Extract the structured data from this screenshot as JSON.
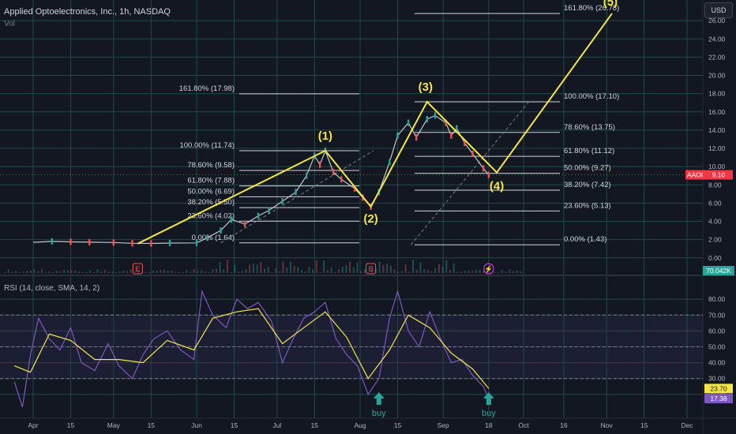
{
  "header": {
    "title": "Applied Optoelectronics, Inc., 1h, NASDAQ",
    "volume_label": "Vol"
  },
  "controls": {
    "currency_button": "USD"
  },
  "rsi_panel": {
    "title": "RSI (14, close, SMA, 14, 2)"
  },
  "colors": {
    "background": "#131722",
    "grid": "#1f4a43",
    "wave_line": "#f5e642",
    "fib_line": "#d1d4dc",
    "price_up": "#26a69a",
    "price_down": "#ef5350",
    "rsi_line": "#7e57c2",
    "rsi_ma": "#f5e642",
    "price_tag": "#f23645"
  },
  "chart_data": [
    {
      "type": "line",
      "name": "price",
      "ylim": [
        -0.8,
        28
      ],
      "y_ticks": [
        "26.00",
        "24.00",
        "22.00",
        "20.00",
        "18.00",
        "16.00",
        "14.00",
        "12.00",
        "10.00",
        "8.00",
        "6.00",
        "4.00",
        "2.00",
        "0.00"
      ],
      "x_ticks": [
        "Apr",
        "15",
        "May",
        "15",
        "Jun",
        "15",
        "Jul",
        "15",
        "Aug",
        "15",
        "Sep",
        "18",
        "Oct",
        "16",
        "Nov",
        "15",
        "Dec"
      ],
      "x_values": [
        "2024-04-01",
        "2024-04-15",
        "2024-05-01",
        "2024-05-15",
        "2024-06-01",
        "2024-06-15",
        "2024-07-01",
        "2024-07-15",
        "2024-08-01",
        "2024-08-15",
        "2024-09-01",
        "2024-09-18",
        "2024-10-01",
        "2024-10-16",
        "2024-11-01",
        "2024-11-15",
        "2024-12-01"
      ],
      "price_path": [
        [
          "2024-04-01",
          1.7
        ],
        [
          "2024-04-08",
          1.8
        ],
        [
          "2024-04-15",
          1.75
        ],
        [
          "2024-04-22",
          1.72
        ],
        [
          "2024-05-01",
          1.68
        ],
        [
          "2024-05-08",
          1.6
        ],
        [
          "2024-05-15",
          1.58
        ],
        [
          "2024-05-22",
          1.62
        ],
        [
          "2024-06-01",
          1.64
        ],
        [
          "2024-06-05",
          2.2
        ],
        [
          "2024-06-10",
          3.0
        ],
        [
          "2024-06-14",
          4.2
        ],
        [
          "2024-06-19",
          3.7
        ],
        [
          "2024-06-24",
          4.6
        ],
        [
          "2024-06-28",
          5.2
        ],
        [
          "2024-07-03",
          6.2
        ],
        [
          "2024-07-08",
          7.2
        ],
        [
          "2024-07-12",
          9.0
        ],
        [
          "2024-07-15",
          11.2
        ],
        [
          "2024-07-17",
          10.2
        ],
        [
          "2024-07-19",
          11.74
        ],
        [
          "2024-07-22",
          9.4
        ],
        [
          "2024-07-25",
          8.6
        ],
        [
          "2024-07-30",
          7.6
        ],
        [
          "2024-08-02",
          6.6
        ],
        [
          "2024-08-05",
          5.6
        ],
        [
          "2024-08-08",
          7.2
        ],
        [
          "2024-08-12",
          10.5
        ],
        [
          "2024-08-15",
          13.4
        ],
        [
          "2024-08-19",
          14.8
        ],
        [
          "2024-08-22",
          13.2
        ],
        [
          "2024-08-26",
          15.2
        ],
        [
          "2024-08-29",
          15.6
        ],
        [
          "2024-09-02",
          14.8
        ],
        [
          "2024-09-04",
          13.4
        ],
        [
          "2024-09-06",
          14.2
        ],
        [
          "2024-09-09",
          12.6
        ],
        [
          "2024-09-12",
          11.4
        ],
        [
          "2024-09-16",
          9.8
        ],
        [
          "2024-09-18",
          9.1
        ]
      ],
      "wave_points": [
        {
          "label": "",
          "date": "2024-05-10",
          "price": 1.55
        },
        {
          "label": "(1)",
          "date": "2024-07-19",
          "price": 11.74
        },
        {
          "label": "(2)",
          "date": "2024-08-05",
          "price": 5.6
        },
        {
          "label": "(3)",
          "date": "2024-08-26",
          "price": 17.1
        },
        {
          "label": "(4)",
          "date": "2024-09-21",
          "price": 9.35
        },
        {
          "label": "(5)",
          "date": "2024-11-03",
          "price": 26.78
        }
      ],
      "fib_set_1": [
        {
          "label": "161.80% (17.98)",
          "price": 17.98
        },
        {
          "label": "100.00% (11.74)",
          "price": 11.74
        },
        {
          "label": "78.60% (9.58)",
          "price": 9.58
        },
        {
          "label": "61.80% (7.88)",
          "price": 7.88
        },
        {
          "label": "50.00% (6.69)",
          "price": 6.69
        },
        {
          "label": "38.20% (5.50)",
          "price": 5.5
        },
        {
          "label": "23.60% (4.02)",
          "price": 4.02
        },
        {
          "label": "0.00% (1.64)",
          "price": 1.64
        }
      ],
      "fib_set_2": [
        {
          "label": "161.80% (26.78)",
          "price": 26.78
        },
        {
          "label": "100.00% (17.10)",
          "price": 17.1
        },
        {
          "label": "78.60% (13.75)",
          "price": 13.75
        },
        {
          "label": "61.80% (11.12)",
          "price": 11.12
        },
        {
          "label": "50.00% (9.27)",
          "price": 9.27
        },
        {
          "label": "38.20% (7.42)",
          "price": 7.42
        },
        {
          "label": "23.60% (5.13)",
          "price": 5.13
        },
        {
          "label": "0.00% (1.43)",
          "price": 1.43
        }
      ],
      "last_price": {
        "symbol": "AAOI",
        "value": "9.10"
      },
      "volume_tag": "70.042K",
      "event_markers": [
        {
          "glyph": "E",
          "date": "2024-05-10"
        },
        {
          "glyph": "E",
          "date": "2024-08-05"
        },
        {
          "glyph": "⚡",
          "date": "2024-09-18"
        }
      ]
    },
    {
      "type": "line",
      "name": "RSI",
      "ylim": [
        5,
        92
      ],
      "y_ticks": [
        "80.00",
        "70.00",
        "60.00",
        "50.00",
        "40.00",
        "30.00",
        "20.00"
      ],
      "levels": [
        70,
        50,
        30
      ],
      "rsi_path": [
        [
          "2024-03-25",
          28
        ],
        [
          "2024-03-28",
          12
        ],
        [
          "2024-03-31",
          45
        ],
        [
          "2024-04-03",
          68
        ],
        [
          "2024-04-07",
          55
        ],
        [
          "2024-04-11",
          48
        ],
        [
          "2024-04-15",
          62
        ],
        [
          "2024-04-19",
          40
        ],
        [
          "2024-04-24",
          35
        ],
        [
          "2024-04-29",
          52
        ],
        [
          "2024-05-03",
          38
        ],
        [
          "2024-05-08",
          30
        ],
        [
          "2024-05-12",
          45
        ],
        [
          "2024-05-16",
          55
        ],
        [
          "2024-05-21",
          60
        ],
        [
          "2024-05-26",
          48
        ],
        [
          "2024-05-31",
          42
        ],
        [
          "2024-06-03",
          85
        ],
        [
          "2024-06-07",
          70
        ],
        [
          "2024-06-12",
          62
        ],
        [
          "2024-06-16",
          80
        ],
        [
          "2024-06-20",
          74
        ],
        [
          "2024-06-24",
          78
        ],
        [
          "2024-06-29",
          66
        ],
        [
          "2024-07-03",
          40
        ],
        [
          "2024-07-07",
          55
        ],
        [
          "2024-07-11",
          68
        ],
        [
          "2024-07-15",
          72
        ],
        [
          "2024-07-19",
          78
        ],
        [
          "2024-07-23",
          55
        ],
        [
          "2024-07-27",
          45
        ],
        [
          "2024-07-31",
          38
        ],
        [
          "2024-08-04",
          20
        ],
        [
          "2024-08-08",
          30
        ],
        [
          "2024-08-12",
          68
        ],
        [
          "2024-08-15",
          85
        ],
        [
          "2024-08-19",
          60
        ],
        [
          "2024-08-23",
          50
        ],
        [
          "2024-08-27",
          72
        ],
        [
          "2024-08-31",
          55
        ],
        [
          "2024-09-04",
          40
        ],
        [
          "2024-09-08",
          42
        ],
        [
          "2024-09-12",
          32
        ],
        [
          "2024-09-16",
          25
        ],
        [
          "2024-09-18",
          17.38
        ]
      ],
      "rsi_ma_path": [
        [
          "2024-03-25",
          38
        ],
        [
          "2024-03-31",
          34
        ],
        [
          "2024-04-07",
          58
        ],
        [
          "2024-04-15",
          54
        ],
        [
          "2024-04-24",
          42
        ],
        [
          "2024-05-03",
          42
        ],
        [
          "2024-05-12",
          40
        ],
        [
          "2024-05-21",
          54
        ],
        [
          "2024-05-31",
          48
        ],
        [
          "2024-06-07",
          68
        ],
        [
          "2024-06-16",
          72
        ],
        [
          "2024-06-24",
          74
        ],
        [
          "2024-07-03",
          52
        ],
        [
          "2024-07-11",
          62
        ],
        [
          "2024-07-19",
          72
        ],
        [
          "2024-07-27",
          56
        ],
        [
          "2024-08-04",
          30
        ],
        [
          "2024-08-12",
          48
        ],
        [
          "2024-08-19",
          70
        ],
        [
          "2024-08-27",
          62
        ],
        [
          "2024-09-04",
          46
        ],
        [
          "2024-09-12",
          36
        ],
        [
          "2024-09-18",
          23.7
        ]
      ],
      "rsi_value": "17.38",
      "rsi_ma_value": "23.70",
      "buy_signals": [
        {
          "label": "buy",
          "date": "2024-08-08"
        },
        {
          "label": "buy",
          "date": "2024-09-18"
        }
      ]
    }
  ]
}
